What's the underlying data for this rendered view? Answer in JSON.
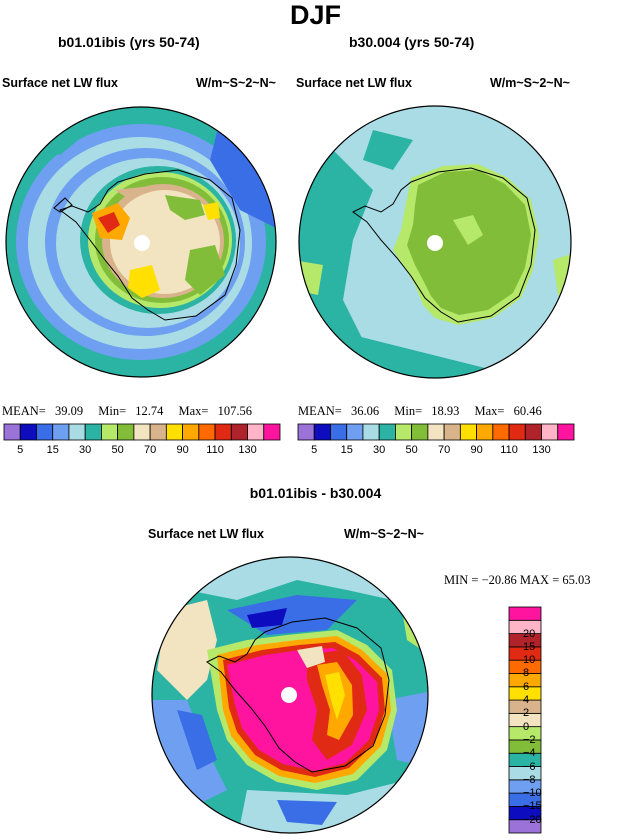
{
  "header": {
    "title": "DJF"
  },
  "panels": [
    {
      "title": "b01.01ibis (yrs 50-74)",
      "variable": "Surface net LW flux",
      "units": "W/m~S~2~N~",
      "stats": {
        "mean_label": "MEAN=",
        "mean": "39.09",
        "min_label": "Min=",
        "min": "12.74",
        "max_label": "Max=",
        "max": "107.56"
      }
    },
    {
      "title": "b30.004 (yrs 50-74)",
      "variable": "Surface net LW flux",
      "units": "W/m~S~2~N~",
      "stats": {
        "mean_label": "MEAN=",
        "mean": "36.06",
        "min_label": "Min=",
        "min": "18.93",
        "max_label": "Max=",
        "max": "60.46"
      }
    }
  ],
  "colorbar_top": {
    "colors": [
      "#9a72d8",
      "#0d0dbf",
      "#3a6ee6",
      "#6f9ff0",
      "#a9dce4",
      "#2bb3a4",
      "#b6e86a",
      "#82bd3a",
      "#f2e4c0",
      "#d8b38c",
      "#ffe000",
      "#ffa900",
      "#ff6a00",
      "#e02a14",
      "#b1232b",
      "#ffb4c8",
      "#ff14a0"
    ],
    "tick_labels": [
      "5",
      "15",
      "30",
      "50",
      "70",
      "90",
      "110",
      "130"
    ]
  },
  "diff_panel": {
    "title": "b01.01ibis - b30.004",
    "variable": "Surface net LW flux",
    "units": "W/m~S~2~N~",
    "stats_text": "MIN = −20.86  MAX =   65.03"
  },
  "colorbar_diff": {
    "colors": [
      "#9a72d8",
      "#0d0dbf",
      "#3a6ee6",
      "#6f9ff0",
      "#a9dce4",
      "#2bb3a4",
      "#82bd3a",
      "#b6e86a",
      "#f2e4c0",
      "#d8b38c",
      "#ffe000",
      "#ffa900",
      "#ff6a00",
      "#e02a14",
      "#b1232b",
      "#ffb4c8",
      "#ff14a0"
    ],
    "tick_labels": [
      "−20",
      "−15",
      "−10",
      "−8",
      "−6",
      "−4",
      "−2",
      "0",
      "2",
      "4",
      "6",
      "8",
      "10",
      "15",
      "20"
    ]
  }
}
